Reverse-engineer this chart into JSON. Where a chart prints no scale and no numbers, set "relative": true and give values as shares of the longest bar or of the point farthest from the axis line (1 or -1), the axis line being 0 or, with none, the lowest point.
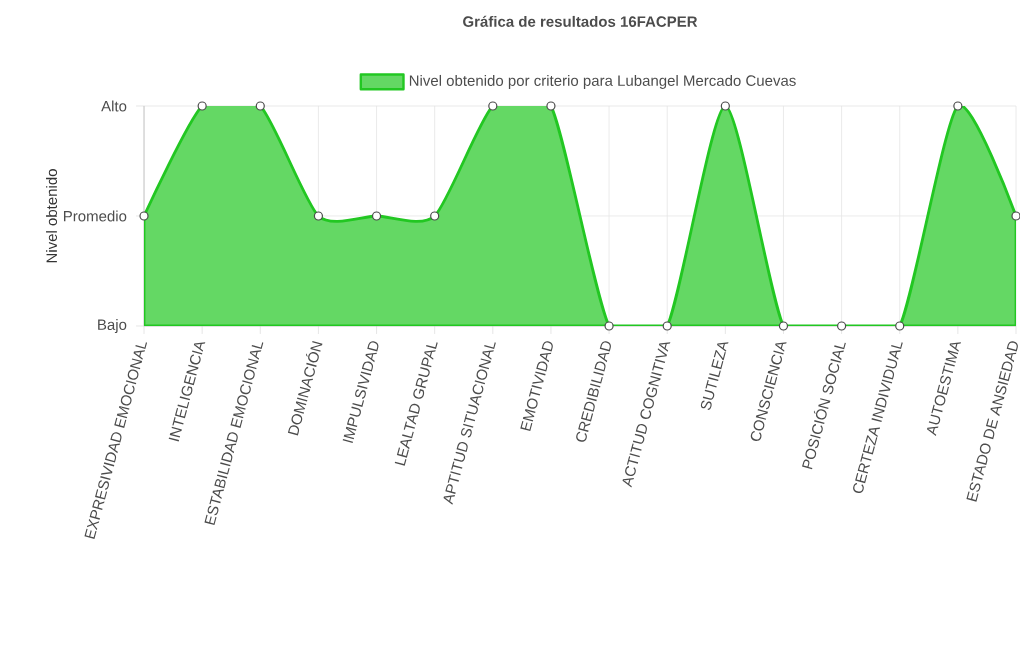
{
  "chart_data": {
    "type": "area",
    "title": "Gráfica de resultados 16FACPER",
    "ylabel": "Nivel obtenido",
    "categories": [
      "EXPRESIVIDAD EMOCIONAL",
      "INTELIGENCIA",
      "ESTABILIDAD EMOCIONAL",
      "DOMINACIÓN",
      "IMPULSIVIDAD",
      "LEALTAD GRUPAL",
      "APTITUD SITUACIONAL",
      "EMOTIVIDAD",
      "CREDIBILIDAD",
      "ACTITUD COGNITIVA",
      "SUTILEZA",
      "CONSCIENCIA",
      "POSICIÓN SOCIAL",
      "CERTEZA INDIVIDUAL",
      "AUTOESTIMA",
      "ESTADO DE ANSIEDAD"
    ],
    "series": [
      {
        "name": "Nivel obtenido por criterio para Lubangel Mercado Cuevas",
        "color": "#22c722",
        "values": [
          0.5,
          1,
          1,
          0.5,
          0.5,
          0.5,
          1,
          1,
          0,
          0,
          1,
          0,
          0,
          0,
          1,
          0.5
        ]
      }
    ],
    "relative": true,
    "annotations": [
      "Bajo",
      "Promedio",
      "Alto"
    ],
    "grid": true,
    "legend": "top",
    "marker": "circle",
    "line_style": "solid"
  }
}
